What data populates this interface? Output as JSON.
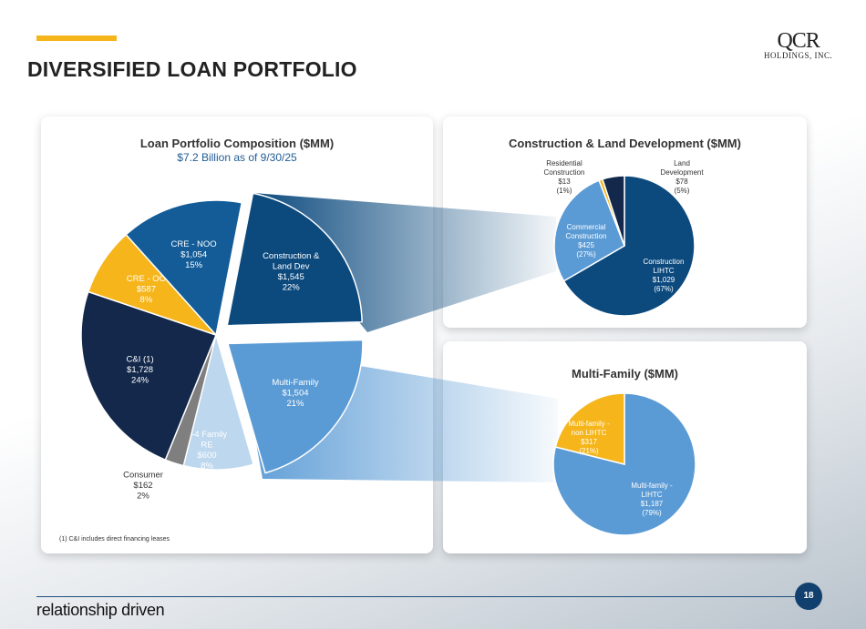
{
  "header": {
    "title": "DIVERSIFIED LOAN PORTFOLIO",
    "logo_line1": "QCR",
    "logo_line2": "HOLDINGS, INC.",
    "accent_color": "#f5b51b"
  },
  "footer": {
    "tagline": "relationship driven",
    "page_number": "18",
    "footnote": "(1)    C&I includes direct financing leases"
  },
  "chart_data": [
    {
      "type": "pie",
      "title": "Loan Portfolio Composition ($MM)",
      "subtitle": "$7.2 Billion as of 9/30/25",
      "slices": [
        {
          "name": "Construction & Land Dev",
          "lines": [
            "Construction &",
            "Land Dev",
            "$1,545",
            "22%"
          ],
          "value": 1545,
          "pct": 22,
          "color": "#0c4a7e",
          "exploded": true
        },
        {
          "name": "Multi-Family",
          "lines": [
            "Multi-Family",
            "$1,504",
            "21%"
          ],
          "value": 1504,
          "pct": 21,
          "color": "#5b9bd5",
          "exploded": true
        },
        {
          "name": "1-4 Family RE",
          "lines": [
            "1-4 Family",
            "RE",
            "$600",
            "8%"
          ],
          "value": 600,
          "pct": 8,
          "color": "#bdd7ee"
        },
        {
          "name": "Consumer",
          "lines": [
            "Consumer",
            "$162",
            "2%"
          ],
          "value": 162,
          "pct": 2,
          "color": "#7f7f7f"
        },
        {
          "name": "C&I (1)",
          "lines": [
            "C&I (1)",
            "$1,728",
            "24%"
          ],
          "value": 1728,
          "pct": 24,
          "color": "#13284b"
        },
        {
          "name": "CRE - OO",
          "lines": [
            "CRE - OO",
            "$587",
            "8%"
          ],
          "value": 587,
          "pct": 8,
          "color": "#f5b51b"
        },
        {
          "name": "CRE - NOO",
          "lines": [
            "CRE - NOO",
            "$1,054",
            "15%"
          ],
          "value": 1054,
          "pct": 15,
          "color": "#135c98"
        }
      ]
    },
    {
      "type": "pie",
      "title": "Construction & Land Development ($MM)",
      "slices": [
        {
          "name": "Construction LIHTC",
          "lines": [
            "Construction",
            "LIHTC",
            "$1,029",
            "(67%)"
          ],
          "value": 1029,
          "pct": 67,
          "color": "#0c4a7e"
        },
        {
          "name": "Commercial Construction",
          "lines": [
            "Commercial",
            "Construction",
            "$425",
            "(27%)"
          ],
          "value": 425,
          "pct": 27,
          "color": "#5b9bd5"
        },
        {
          "name": "Residential Construction",
          "lines": [
            "Residential",
            "Construction",
            "$13",
            "(1%)"
          ],
          "value": 13,
          "pct": 1,
          "color": "#f5b51b"
        },
        {
          "name": "Land Development",
          "lines": [
            "Land",
            "Development",
            "$78",
            "(5%)"
          ],
          "value": 78,
          "pct": 5,
          "color": "#13284b"
        }
      ]
    },
    {
      "type": "pie",
      "title": "Multi-Family ($MM)",
      "slices": [
        {
          "name": "Multi-family - LIHTC",
          "lines": [
            "Multi-family -",
            "LIHTC",
            "$1,187",
            "(79%)"
          ],
          "value": 1187,
          "pct": 79,
          "color": "#5b9bd5"
        },
        {
          "name": "Multi-family - non LIHTC",
          "lines": [
            "Multi-family -",
            "non LIHTC",
            "$317",
            "(21%)"
          ],
          "value": 317,
          "pct": 21,
          "color": "#f5b51b"
        }
      ]
    }
  ]
}
